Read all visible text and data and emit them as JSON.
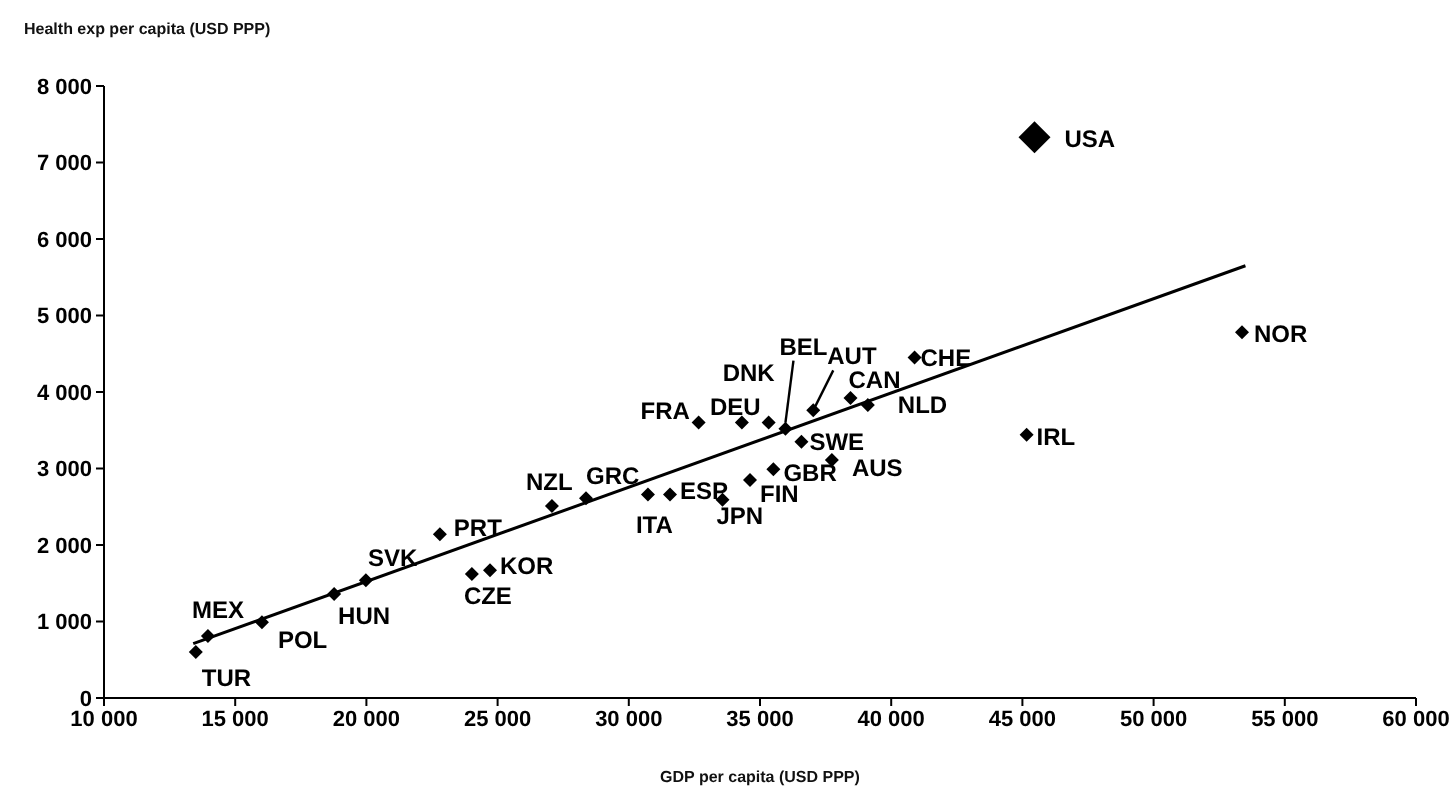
{
  "chart_data": {
    "type": "scatter",
    "ylabel": "Health exp  per capita  (USD PPP)",
    "xlabel": "GDP per capita  (USD PPP)",
    "xlim": [
      10000,
      60000
    ],
    "ylim": [
      0,
      8000
    ],
    "xticks": [
      {
        "value": 10000,
        "label": "10 000"
      },
      {
        "value": 15000,
        "label": "15 000"
      },
      {
        "value": 20000,
        "label": "20 000"
      },
      {
        "value": 25000,
        "label": "25 000"
      },
      {
        "value": 30000,
        "label": "30 000"
      },
      {
        "value": 35000,
        "label": "35 000"
      },
      {
        "value": 40000,
        "label": "40 000"
      },
      {
        "value": 45000,
        "label": "45 000"
      },
      {
        "value": 50000,
        "label": "50 000"
      },
      {
        "value": 55000,
        "label": "55 000"
      },
      {
        "value": 60000,
        "label": "60 000"
      }
    ],
    "yticks": [
      0,
      {
        "value": 1000,
        "label": "1 000"
      },
      {
        "value": 2000,
        "label": "2 000"
      },
      {
        "value": 3000,
        "label": "3 000"
      },
      {
        "value": 4000,
        "label": "4 000"
      },
      {
        "value": 5000,
        "label": "5 000"
      },
      {
        "value": 6000,
        "label": "6 000"
      },
      {
        "value": 7000,
        "label": "7 000"
      },
      {
        "value": 8000,
        "label": "8 000"
      }
    ],
    "marker": "diamond",
    "grid": false,
    "series": [
      {
        "color": "#000000",
        "x": [
          13500,
          13960,
          16020,
          18770,
          19980,
          22800,
          24020,
          24710,
          27070,
          28370,
          30730,
          31570,
          33570,
          34620,
          35510,
          36580,
          32660,
          34310,
          35330,
          35970,
          37030,
          38450,
          39110,
          37740,
          40890,
          45160,
          53370
        ],
        "values": [
          600,
          810,
          990,
          1360,
          1540,
          2140,
          1620,
          1670,
          2510,
          2610,
          2660,
          2660,
          2590,
          2850,
          2990,
          3350,
          3600,
          3600,
          3600,
          3520,
          3760,
          3920,
          3830,
          3110,
          4450,
          3440,
          4780
        ]
      },
      {
        "color": "#000000",
        "x": [
          45460
        ],
        "values": [
          7330
        ]
      },
      {
        "type": "line",
        "color": "#000000",
        "marker": "none",
        "x": [
          13400,
          53500
        ],
        "values": [
          710,
          5650
        ]
      }
    ],
    "annotations": [
      {
        "text": "TUR",
        "x": 13500,
        "y": 600
      },
      {
        "text": "MEX",
        "x": 13960,
        "y": 810
      },
      {
        "text": "POL",
        "x": 16020,
        "y": 990
      },
      {
        "text": "HUN",
        "x": 18770,
        "y": 1360
      },
      {
        "text": "SVK",
        "x": 19980,
        "y": 1540
      },
      {
        "text": "PRT",
        "x": 22800,
        "y": 2140
      },
      {
        "text": "CZE",
        "x": 24020,
        "y": 1620
      },
      {
        "text": "KOR",
        "x": 24710,
        "y": 1670
      },
      {
        "text": "NZL",
        "x": 27070,
        "y": 2510
      },
      {
        "text": "GRC",
        "x": 28370,
        "y": 2610
      },
      {
        "text": "ITA",
        "x": 30730,
        "y": 2660
      },
      {
        "text": "ESP",
        "x": 31570,
        "y": 2660
      },
      {
        "text": "JPN",
        "x": 33570,
        "y": 2590
      },
      {
        "text": "FIN",
        "x": 34620,
        "y": 2850
      },
      {
        "text": "GBR",
        "x": 35510,
        "y": 2990
      },
      {
        "text": "SWE",
        "x": 36580,
        "y": 3350
      },
      {
        "text": "FRA",
        "x": 32660,
        "y": 3600
      },
      {
        "text": "DEU",
        "x": 34310,
        "y": 3600
      },
      {
        "text": "DNK",
        "x": 35330,
        "y": 3600
      },
      {
        "text": "BEL",
        "x": 35970,
        "y": 3520
      },
      {
        "text": "AUT",
        "x": 37030,
        "y": 3760
      },
      {
        "text": "CAN",
        "x": 38450,
        "y": 3920
      },
      {
        "text": "NLD",
        "x": 39110,
        "y": 3830
      },
      {
        "text": "AUS",
        "x": 37740,
        "y": 3110
      },
      {
        "text": "CHE",
        "x": 40890,
        "y": 4450
      },
      {
        "text": "IRL",
        "x": 45160,
        "y": 3440
      },
      {
        "text": "NOR",
        "x": 53370,
        "y": 4780
      },
      {
        "text": "USA",
        "x": 45460,
        "y": 7330
      }
    ]
  }
}
